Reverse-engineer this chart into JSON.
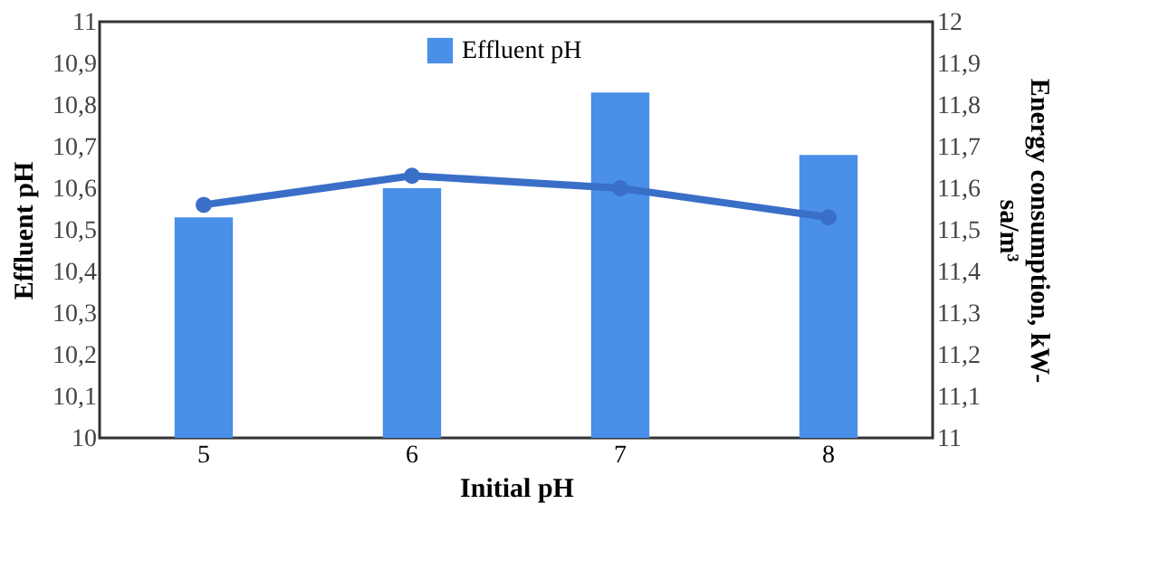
{
  "chart_data": {
    "type": "bar",
    "xlabel": "Initial pH",
    "ylabel": "Effluent pH",
    "y2label": "Energy consumption, kW-sa/m³",
    "categories": [
      "5",
      "6",
      "7",
      "8"
    ],
    "series": [
      {
        "name": "Effluent pH",
        "color": "#4a8fe8",
        "values": [
          10.53,
          10.6,
          10.83,
          10.68
        ]
      },
      {
        "type": "line",
        "axis": "y2",
        "color": "#3a6fc8",
        "values": [
          11.56,
          11.63,
          11.6,
          11.53
        ]
      }
    ],
    "ylim": [
      10,
      11
    ],
    "yticks": [
      10,
      {
        "value": 10.1,
        "label": "10,1"
      },
      {
        "value": 10.2,
        "label": "10,2"
      },
      {
        "value": 10.3,
        "label": "10,3"
      },
      {
        "value": 10.4,
        "label": "10,4"
      },
      {
        "value": 10.5,
        "label": "10,5"
      },
      {
        "value": 10.6,
        "label": "10,6"
      },
      {
        "value": 10.7,
        "label": "10,7"
      },
      {
        "value": 10.8,
        "label": "10,8"
      },
      {
        "value": 10.9,
        "label": "10,9"
      },
      11
    ],
    "y2lim": [
      11,
      12
    ],
    "y2ticks": [
      11,
      {
        "value": 11.1,
        "label": "11,1"
      },
      {
        "value": 11.2,
        "label": "11,2"
      },
      {
        "value": 11.3,
        "label": "11,3"
      },
      {
        "value": 11.4,
        "label": "11,4"
      },
      {
        "value": 11.5,
        "label": "11,5"
      },
      {
        "value": 11.6,
        "label": "11,6"
      },
      {
        "value": 11.7,
        "label": "11,7"
      },
      {
        "value": 11.8,
        "label": "11,8"
      },
      {
        "value": 11.9,
        "label": "11,9"
      },
      12
    ],
    "marker": "circle",
    "legend": "top",
    "grid": false
  }
}
